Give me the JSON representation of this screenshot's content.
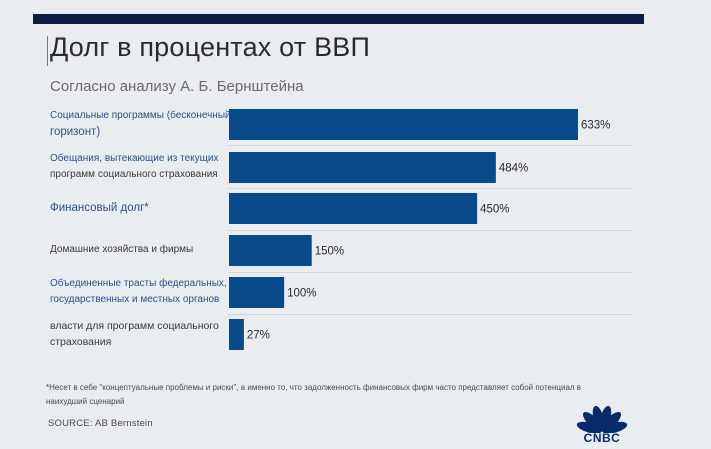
{
  "chart_data": {
    "type": "bar",
    "orientation": "horizontal",
    "title": "Долг в процентах от ВВП",
    "subtitle": "Согласно анализу А. Б. Бернштейна",
    "categories": [
      [
        "Социальные программы (бесконечный",
        "горизонт)"
      ],
      [
        "Обещания, вытекающие из текущих",
        "программ социального страхования"
      ],
      [
        "Финансовый долг*"
      ],
      [
        "Домашние хозяйства и фирмы"
      ],
      [
        "Объединенные трасты федеральных,",
        "государственных и местных органов"
      ],
      [
        "власти для программ социального",
        "страхования"
      ]
    ],
    "values": [
      633,
      484,
      450,
      150,
      100,
      27
    ],
    "value_labels": [
      "633%",
      "484%",
      "450%",
      "150%",
      "100%",
      "27%"
    ],
    "xlim": [
      0,
      633
    ],
    "bar_color": "#084a8a"
  },
  "footnote": [
    "*Несет в себе \"концептуальные проблемы и риски\", а именно то, что задолженность финансовых фирм часто представляет собой потенциал в",
    "наихудший сценарий"
  ],
  "source": "SOURCE: AB Bernstein",
  "logo_text": "CNBC",
  "colors": {
    "topbar": "#0b1e45",
    "background": "#e9edf0"
  }
}
